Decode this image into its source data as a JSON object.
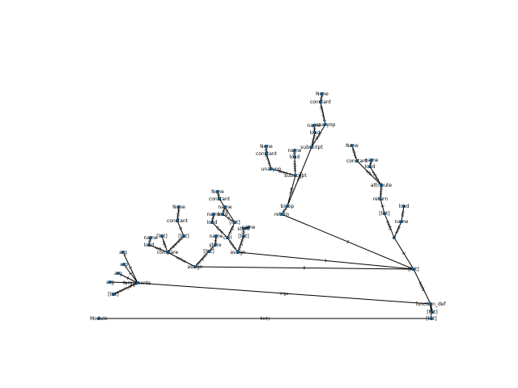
{
  "diagram": {
    "node_color": "#1f77b4",
    "edge_color": "#000000",
    "nodes": [
      {
        "id": "root",
        "label": "Module"
      },
      {
        "id": "body",
        "label": "[list]"
      },
      {
        "id": "fd",
        "label": "function_def"
      },
      {
        "id": "fname",
        "label": "[list]"
      },
      {
        "id": "fargs",
        "label": "arguments"
      },
      {
        "id": "posargs",
        "label": "[list]"
      },
      {
        "id": "arg0",
        "label": "arg"
      },
      {
        "id": "arg1",
        "label": "arg"
      },
      {
        "id": "arg2",
        "label": "arg"
      },
      {
        "id": "arg3",
        "label": "arg"
      },
      {
        "id": "fbody",
        "label": "[list]"
      },
      {
        "id": "s0",
        "label": "assign"
      },
      {
        "id": "s0t",
        "label": "[list]"
      },
      {
        "id": "s0tgt",
        "label": "store"
      },
      {
        "id": "s0tn",
        "label": "name"
      },
      {
        "id": "s0v",
        "label": "compare"
      },
      {
        "id": "s0l",
        "label": "load"
      },
      {
        "id": "s0ln",
        "label": "name"
      },
      {
        "id": "s0ops",
        "label": "[list]"
      },
      {
        "id": "s0cmp",
        "label": "[list]"
      },
      {
        "id": "s0c",
        "label": "constant"
      },
      {
        "id": "s0cv",
        "label": "None"
      },
      {
        "id": "s1",
        "label": "assign"
      },
      {
        "id": "s1t",
        "label": "[list]"
      },
      {
        "id": "s1tgt",
        "label": "store"
      },
      {
        "id": "s1tn",
        "label": "name"
      },
      {
        "id": "s1v",
        "label": "call"
      },
      {
        "id": "s1f",
        "label": "load"
      },
      {
        "id": "s1fn",
        "label": "name"
      },
      {
        "id": "s1args",
        "label": "[list]"
      },
      {
        "id": "s1a",
        "label": "load"
      },
      {
        "id": "s1an",
        "label": "name"
      },
      {
        "id": "s1c",
        "label": "constant"
      },
      {
        "id": "s1cv",
        "label": "None"
      },
      {
        "id": "s2",
        "label": "if"
      },
      {
        "id": "s2t",
        "label": "name"
      },
      {
        "id": "s2tl",
        "label": "load"
      },
      {
        "id": "s2b",
        "label": "[list]"
      },
      {
        "id": "s2r",
        "label": "return"
      },
      {
        "id": "s2rv",
        "label": "attribute"
      },
      {
        "id": "s2rl",
        "label": "load"
      },
      {
        "id": "s2rn",
        "label": "name"
      },
      {
        "id": "s2rc",
        "label": "constant"
      },
      {
        "id": "s2rcv",
        "label": "None"
      },
      {
        "id": "s3",
        "label": "return"
      },
      {
        "id": "s3v",
        "label": "binop"
      },
      {
        "id": "s3a",
        "label": "subscript"
      },
      {
        "id": "s3al",
        "label": "load"
      },
      {
        "id": "s3an",
        "label": "name"
      },
      {
        "id": "s3ai",
        "label": "unaryop"
      },
      {
        "id": "s3aic",
        "label": "constant"
      },
      {
        "id": "s3aicv",
        "label": "None"
      },
      {
        "id": "s3b",
        "label": "subscript"
      },
      {
        "id": "s3bl",
        "label": "load"
      },
      {
        "id": "s3bn",
        "label": "name"
      },
      {
        "id": "s3bi",
        "label": "unaryop"
      },
      {
        "id": "s3bic",
        "label": "constant"
      },
      {
        "id": "s3bicv",
        "label": "None"
      }
    ],
    "edges": [
      {
        "from": "root",
        "to": "body",
        "label": "body"
      },
      {
        "from": "body",
        "to": "fd",
        "label": "0"
      },
      {
        "from": "fd",
        "to": "fname",
        "label": "name"
      },
      {
        "from": "fd",
        "to": "fargs",
        "label": "args"
      },
      {
        "from": "fargs",
        "to": "posargs",
        "label": "posonlyargs"
      },
      {
        "from": "fargs",
        "to": "arg0",
        "label": "0"
      },
      {
        "from": "fargs",
        "to": "arg1",
        "label": "1"
      },
      {
        "from": "fargs",
        "to": "arg2",
        "label": "2"
      },
      {
        "from": "fargs",
        "to": "arg3",
        "label": "3"
      },
      {
        "from": "fd",
        "to": "fbody",
        "label": "body"
      },
      {
        "from": "fbody",
        "to": "s0",
        "label": "0"
      },
      {
        "from": "s0",
        "to": "s0t",
        "label": "targets"
      },
      {
        "from": "s0t",
        "to": "s0tgt",
        "label": "0"
      },
      {
        "from": "s0tgt",
        "to": "s0tn",
        "label": "ctx"
      },
      {
        "from": "s0",
        "to": "s0v",
        "label": "value"
      },
      {
        "from": "s0v",
        "to": "s0l",
        "label": "left"
      },
      {
        "from": "s0l",
        "to": "s0ln",
        "label": "ctx"
      },
      {
        "from": "s0v",
        "to": "s0ops",
        "label": "ops"
      },
      {
        "from": "s0v",
        "to": "s0cmp",
        "label": "comparators"
      },
      {
        "from": "s0cmp",
        "to": "s0c",
        "label": "0"
      },
      {
        "from": "s0c",
        "to": "s0cv",
        "label": "value"
      },
      {
        "from": "fbody",
        "to": "s1",
        "label": "1"
      },
      {
        "from": "s1",
        "to": "s1t",
        "label": "targets"
      },
      {
        "from": "s1t",
        "to": "s1tgt",
        "label": "0"
      },
      {
        "from": "s1tgt",
        "to": "s1tn",
        "label": "ctx"
      },
      {
        "from": "s1",
        "to": "s1v",
        "label": "value"
      },
      {
        "from": "s1v",
        "to": "s1f",
        "label": "func"
      },
      {
        "from": "s1f",
        "to": "s1fn",
        "label": "ctx"
      },
      {
        "from": "s1v",
        "to": "s1args",
        "label": "args"
      },
      {
        "from": "s1args",
        "to": "s1a",
        "label": "0"
      },
      {
        "from": "s1a",
        "to": "s1an",
        "label": "ctx"
      },
      {
        "from": "s1args",
        "to": "s1c",
        "label": "1"
      },
      {
        "from": "s1c",
        "to": "s1cv",
        "label": "value"
      },
      {
        "from": "fbody",
        "to": "s2",
        "label": "2"
      },
      {
        "from": "s2",
        "to": "s2t",
        "label": "test"
      },
      {
        "from": "s2t",
        "to": "s2tl",
        "label": "ctx"
      },
      {
        "from": "s2",
        "to": "s2b",
        "label": "body"
      },
      {
        "from": "s2b",
        "to": "s2r",
        "label": "0"
      },
      {
        "from": "s2r",
        "to": "s2rv",
        "label": "value"
      },
      {
        "from": "s2rv",
        "to": "s2rl",
        "label": "value"
      },
      {
        "from": "s2rl",
        "to": "s2rn",
        "label": "ctx"
      },
      {
        "from": "s2rv",
        "to": "s2rc",
        "label": "attr"
      },
      {
        "from": "s2rc",
        "to": "s2rcv",
        "label": "value"
      },
      {
        "from": "fbody",
        "to": "s3",
        "label": "3"
      },
      {
        "from": "s3",
        "to": "s3v",
        "label": "value"
      },
      {
        "from": "s3v",
        "to": "s3a",
        "label": "left"
      },
      {
        "from": "s3a",
        "to": "s3al",
        "label": "value"
      },
      {
        "from": "s3al",
        "to": "s3an",
        "label": "ctx"
      },
      {
        "from": "s3a",
        "to": "s3ai",
        "label": "slice"
      },
      {
        "from": "s3ai",
        "to": "s3aic",
        "label": "operand"
      },
      {
        "from": "s3aic",
        "to": "s3aicv",
        "label": "value"
      },
      {
        "from": "s3v",
        "to": "s3b",
        "label": "right"
      },
      {
        "from": "s3b",
        "to": "s3bl",
        "label": "value"
      },
      {
        "from": "s3bl",
        "to": "s3bn",
        "label": "ctx"
      },
      {
        "from": "s3b",
        "to": "s3bi",
        "label": "slice"
      },
      {
        "from": "s3bi",
        "to": "s3bic",
        "label": "operand"
      },
      {
        "from": "s3bic",
        "to": "s3bicv",
        "label": "value"
      }
    ]
  }
}
